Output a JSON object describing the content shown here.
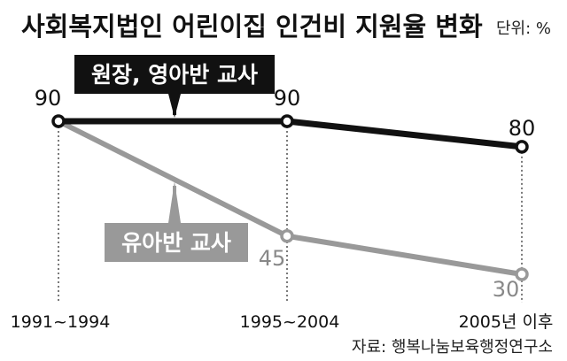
{
  "title": "사회복지법인 어린이집 인건비 지원율 변화",
  "unit": "단위: %",
  "source": "자료: 행복나눔보육행정연구소",
  "colors": {
    "series_dark": "#111111",
    "series_light": "#999999",
    "label_box_dark": "#111111",
    "label_box_light": "#999999",
    "label_text": "#ffffff",
    "guide_line": "#333333",
    "background": "#ffffff"
  },
  "chart_data": {
    "type": "line",
    "title": "사회복지법인 어린이집 인건비 지원율 변화",
    "unit": "%",
    "x": [
      "1991~1994",
      "1995~2004",
      "2005년 이후"
    ],
    "ylim": [
      20,
      100
    ],
    "grid": false,
    "series": [
      {
        "name": "원장, 영아반 교사",
        "values": [
          90,
          90,
          80
        ]
      },
      {
        "name": "유아반 교사",
        "values": [
          90,
          45,
          30
        ]
      }
    ]
  }
}
